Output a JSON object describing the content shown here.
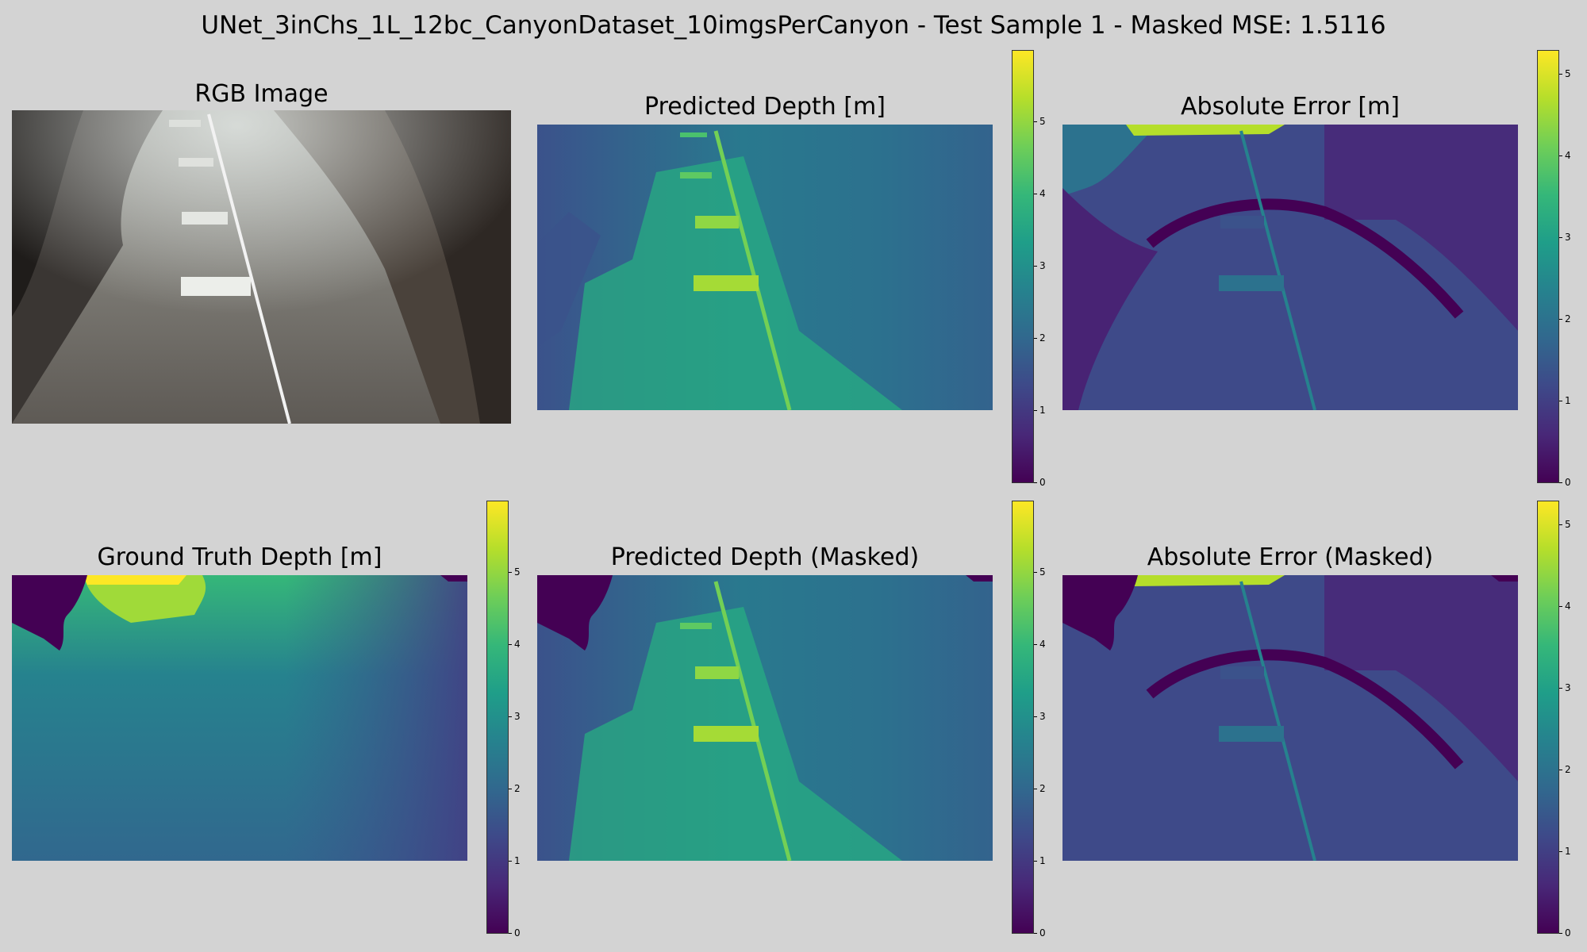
{
  "figure": {
    "suptitle": "UNet_3inChs_1L_12bc_CanyonDataset_10imgsPerCanyon - Test Sample 1 - Masked MSE: 1.5116"
  },
  "panels": {
    "rgb": {
      "title": "RGB Image"
    },
    "pred": {
      "title": "Predicted Depth [m]"
    },
    "err": {
      "title": "Absolute Error [m]"
    },
    "gt": {
      "title": "Ground Truth Depth [m]"
    },
    "pred_masked": {
      "title": "Predicted Depth (Masked)"
    },
    "err_masked": {
      "title": "Absolute Error (Masked)"
    }
  },
  "colors": {
    "background": "#d3d3d3",
    "viridis": [
      "#440154",
      "#482878",
      "#3e4989",
      "#31688e",
      "#26828e",
      "#1f9e89",
      "#35b779",
      "#6ece58",
      "#b5de2b",
      "#fde725"
    ]
  },
  "chart_data": [
    {
      "type": "heatmap",
      "panel": "pred",
      "colorbar": {
        "ticks": [
          "0",
          "1",
          "2",
          "3",
          "4",
          "5"
        ],
        "range": [
          0,
          6
        ]
      }
    },
    {
      "type": "heatmap",
      "panel": "err",
      "colorbar": {
        "ticks": [
          "0",
          "1",
          "2",
          "3",
          "4",
          "5"
        ],
        "range": [
          0,
          5.3
        ]
      }
    },
    {
      "type": "heatmap",
      "panel": "gt",
      "colorbar": {
        "ticks": [
          "0",
          "1",
          "2",
          "3",
          "4",
          "5"
        ],
        "range": [
          0,
          6
        ]
      }
    },
    {
      "type": "heatmap",
      "panel": "pred_masked",
      "colorbar": {
        "ticks": [
          "0",
          "1",
          "2",
          "3",
          "4",
          "5"
        ],
        "range": [
          0,
          6
        ]
      }
    },
    {
      "type": "heatmap",
      "panel": "err_masked",
      "colorbar": {
        "ticks": [
          "0",
          "1",
          "2",
          "3",
          "4",
          "5"
        ],
        "range": [
          0,
          5.3
        ]
      }
    }
  ]
}
